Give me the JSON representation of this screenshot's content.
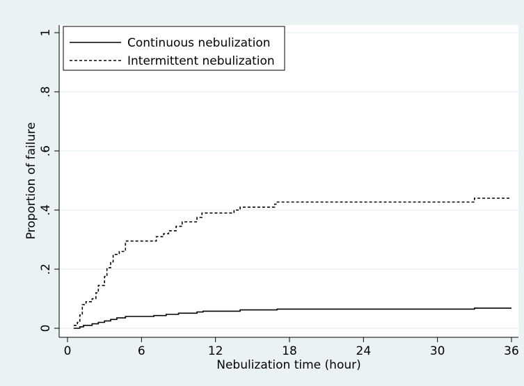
{
  "chart_data": {
    "type": "line",
    "title": "",
    "xlabel": "Nebulization time (hour)",
    "ylabel": "Proportion of failure",
    "xlim": [
      0,
      36
    ],
    "ylim": [
      0,
      1
    ],
    "x_ticks": [
      0,
      6,
      12,
      18,
      24,
      30,
      36
    ],
    "x_tick_labels": [
      "0",
      "6",
      "12",
      "18",
      "24",
      "30",
      "36"
    ],
    "y_ticks": [
      0,
      0.2,
      0.4,
      0.6,
      0.8,
      1
    ],
    "y_tick_labels": [
      "0",
      ".2",
      ".4",
      ".6",
      ".8",
      "1"
    ],
    "grid": true,
    "legend_position": "top-left",
    "step": true,
    "series": [
      {
        "name": "Continuous nebulization",
        "style": "solid",
        "points": [
          [
            0.5,
            0
          ],
          [
            1.0,
            0.005
          ],
          [
            1.3,
            0.01
          ],
          [
            2.0,
            0.015
          ],
          [
            2.5,
            0.02
          ],
          [
            3.0,
            0.025
          ],
          [
            3.5,
            0.03
          ],
          [
            4.0,
            0.035
          ],
          [
            4.7,
            0.04
          ],
          [
            7.0,
            0.043
          ],
          [
            8.0,
            0.047
          ],
          [
            9.0,
            0.051
          ],
          [
            10.5,
            0.055
          ],
          [
            11.0,
            0.058
          ],
          [
            14.0,
            0.062
          ],
          [
            17.0,
            0.065
          ],
          [
            33.0,
            0.068
          ],
          [
            36.0,
            0.068
          ]
        ]
      },
      {
        "name": "Intermittent nebulization",
        "style": "dashed",
        "points": [
          [
            0.5,
            0.01
          ],
          [
            0.8,
            0.02
          ],
          [
            1.0,
            0.045
          ],
          [
            1.2,
            0.08
          ],
          [
            1.5,
            0.09
          ],
          [
            2.0,
            0.1
          ],
          [
            2.3,
            0.12
          ],
          [
            2.5,
            0.145
          ],
          [
            3.0,
            0.175
          ],
          [
            3.2,
            0.205
          ],
          [
            3.5,
            0.225
          ],
          [
            3.7,
            0.25
          ],
          [
            4.2,
            0.26
          ],
          [
            4.7,
            0.295
          ],
          [
            7.2,
            0.31
          ],
          [
            7.8,
            0.32
          ],
          [
            8.2,
            0.33
          ],
          [
            8.8,
            0.345
          ],
          [
            9.3,
            0.36
          ],
          [
            10.5,
            0.375
          ],
          [
            10.9,
            0.39
          ],
          [
            13.5,
            0.4
          ],
          [
            14.0,
            0.41
          ],
          [
            16.8,
            0.42
          ],
          [
            17.0,
            0.427
          ],
          [
            33.0,
            0.44
          ],
          [
            36.0,
            0.44
          ]
        ]
      }
    ]
  }
}
